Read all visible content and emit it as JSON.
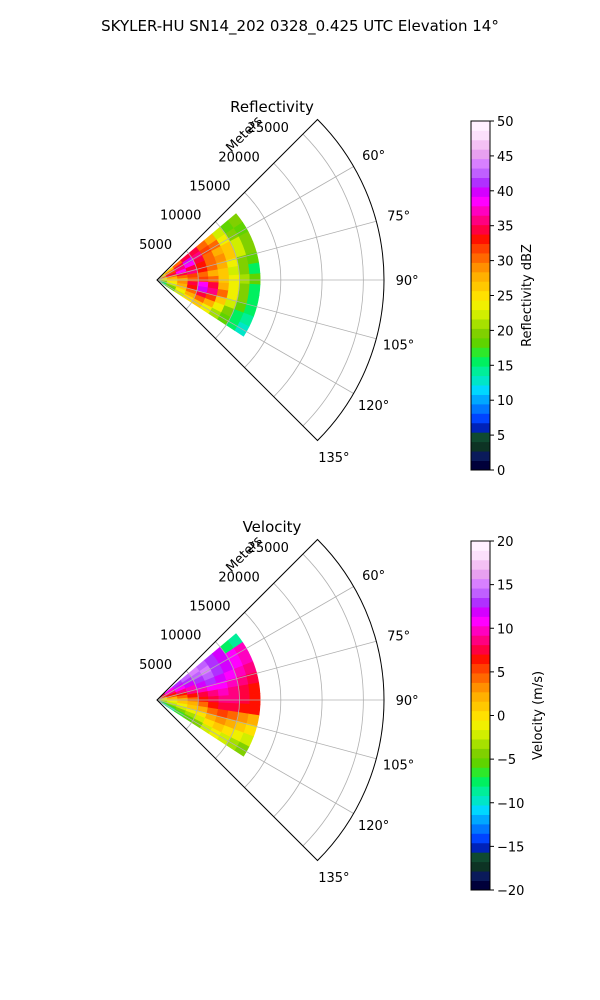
{
  "figure": {
    "suptitle": "SKYLER-HU  SN14_202  0328_0.425 UTC Elevation 14°"
  },
  "chart_data": [
    {
      "type": "heatmap",
      "subtype": "polar-sector (radar PPI)",
      "title": "Reflectivity",
      "radial_axis_label": "Meters",
      "radial_ticks": [
        5000,
        10000,
        15000,
        20000,
        25000
      ],
      "radial_tick_labels": [
        "5000",
        "10000",
        "15000",
        "20000",
        "25000"
      ],
      "r_range": [
        0,
        27500
      ],
      "azimuth_range_deg": [
        45,
        135
      ],
      "azimuth_ticks": [
        60,
        75,
        90,
        105,
        120,
        135
      ],
      "azimuth_tick_labels": [
        "60°",
        "75°",
        "90°",
        "105°",
        "120°",
        "135°"
      ],
      "grid": true,
      "data_extent_m": 12500,
      "colorbar": {
        "label": "Reflectivity dBZ",
        "vmin": 0,
        "vmax": 50,
        "ticks": [
          0,
          5,
          10,
          15,
          20,
          25,
          30,
          35,
          40,
          45,
          50
        ],
        "tick_labels": [
          "0",
          "5",
          "10",
          "15",
          "20",
          "25",
          "30",
          "35",
          "40",
          "45",
          "50"
        ],
        "colors": [
          "#00003a",
          "#0a1a5a",
          "#0d3324",
          "#0f4a30",
          "#0022b8",
          "#0044ff",
          "#0077ff",
          "#00a8ff",
          "#00d8ff",
          "#00e6c8",
          "#00ee99",
          "#00f060",
          "#2ee82a",
          "#5fd400",
          "#80d000",
          "#a6e000",
          "#d0ee00",
          "#f0f000",
          "#ffe000",
          "#ffc800",
          "#ffb000",
          "#ff9000",
          "#ff6800",
          "#ff4000",
          "#ff1000",
          "#ff0040",
          "#ff0080",
          "#ff00c0",
          "#ff00ff",
          "#d400ff",
          "#b030ff",
          "#c060ff",
          "#d880ff",
          "#e8a0f0",
          "#f4c0f4",
          "#fbe0fb",
          "#fff0ff"
        ]
      },
      "values_dbz": [
        [
          24,
          26,
          30,
          34,
          35,
          30,
          28,
          22,
          18,
          20
        ],
        [
          26,
          30,
          35,
          40,
          36,
          32,
          30,
          24,
          20,
          18
        ],
        [
          28,
          32,
          36,
          38,
          34,
          30,
          28,
          26,
          22,
          20
        ],
        [
          30,
          34,
          38,
          35,
          33,
          31,
          29,
          26,
          22,
          19
        ],
        [
          27,
          31,
          34,
          36,
          33,
          30,
          28,
          24,
          20,
          18
        ],
        [
          25,
          28,
          30,
          32,
          30,
          28,
          26,
          22,
          19,
          16
        ],
        [
          23,
          26,
          28,
          30,
          32,
          30,
          27,
          24,
          21,
          18
        ],
        [
          22,
          25,
          29,
          34,
          38,
          35,
          28,
          23,
          20,
          16
        ],
        [
          20,
          24,
          28,
          33,
          40,
          36,
          30,
          24,
          20,
          15
        ],
        [
          18,
          22,
          26,
          30,
          34,
          32,
          27,
          22,
          18,
          15
        ],
        [
          16,
          20,
          24,
          28,
          30,
          28,
          24,
          20,
          16,
          14
        ],
        [
          15,
          18,
          22,
          25,
          26,
          24,
          21,
          18,
          15,
          13
        ]
      ]
    },
    {
      "type": "heatmap",
      "subtype": "polar-sector (radar PPI)",
      "title": "Velocity",
      "radial_axis_label": "Meters",
      "radial_ticks": [
        5000,
        10000,
        15000,
        20000,
        25000
      ],
      "radial_tick_labels": [
        "5000",
        "10000",
        "15000",
        "20000",
        "25000"
      ],
      "r_range": [
        0,
        27500
      ],
      "azimuth_range_deg": [
        45,
        135
      ],
      "azimuth_ticks": [
        60,
        75,
        90,
        105,
        120,
        135
      ],
      "azimuth_tick_labels": [
        "60°",
        "75°",
        "90°",
        "105°",
        "120°",
        "135°"
      ],
      "grid": true,
      "data_extent_m": 12500,
      "colorbar": {
        "label": "Velocity (m/s)",
        "vmin": -20,
        "vmax": 20,
        "ticks": [
          -20,
          -15,
          -10,
          -5,
          0,
          5,
          10,
          15,
          20
        ],
        "tick_labels": [
          "−20",
          "−15",
          "−10",
          "−5",
          "0",
          "5",
          "10",
          "15",
          "20"
        ],
        "colors": [
          "#00003a",
          "#0a1a5a",
          "#0d3324",
          "#0f4a30",
          "#0022b8",
          "#0044ff",
          "#0077ff",
          "#00a8ff",
          "#00d8ff",
          "#00e6c8",
          "#00ee99",
          "#00f060",
          "#2ee82a",
          "#5fd400",
          "#80d000",
          "#a6e000",
          "#d0ee00",
          "#f0f000",
          "#ffe000",
          "#ffc800",
          "#ffb000",
          "#ff9000",
          "#ff6800",
          "#ff4000",
          "#ff1000",
          "#ff0040",
          "#ff0080",
          "#ff00c0",
          "#ff00ff",
          "#d400ff",
          "#b030ff",
          "#c060ff",
          "#d880ff",
          "#e8a0f0",
          "#f4c0f4",
          "#fbe0fb",
          "#fff0ff"
        ]
      },
      "values_ms": [
        [
          8,
          11,
          13,
          14,
          15,
          14,
          13,
          12,
          -8,
          -9
        ],
        [
          8,
          10,
          12,
          13,
          14,
          15,
          13,
          12,
          11,
          10
        ],
        [
          6,
          9,
          11,
          12,
          13,
          14,
          13,
          12,
          11,
          10
        ],
        [
          4,
          7,
          9,
          10,
          12,
          13,
          12,
          11,
          10,
          9
        ],
        [
          2,
          5,
          7,
          9,
          10,
          11,
          11,
          10,
          9,
          8
        ],
        [
          0,
          2,
          4,
          6,
          8,
          9,
          10,
          9,
          8,
          7
        ],
        [
          -1,
          1,
          2,
          4,
          6,
          8,
          9,
          9,
          8,
          7
        ],
        [
          -2,
          -1,
          1,
          2,
          4,
          6,
          8,
          8,
          7,
          6
        ],
        [
          -3,
          -2,
          -1,
          1,
          2,
          4,
          5,
          4,
          3,
          2
        ],
        [
          -4,
          -3,
          -2,
          -1,
          0,
          2,
          3,
          2,
          1,
          0
        ],
        [
          -6,
          -5,
          -4,
          -3,
          -2,
          0,
          1,
          0,
          -1,
          -2
        ],
        [
          -10,
          -9,
          -7,
          -5,
          -4,
          -2,
          -1,
          -2,
          -3,
          -4
        ]
      ]
    }
  ]
}
